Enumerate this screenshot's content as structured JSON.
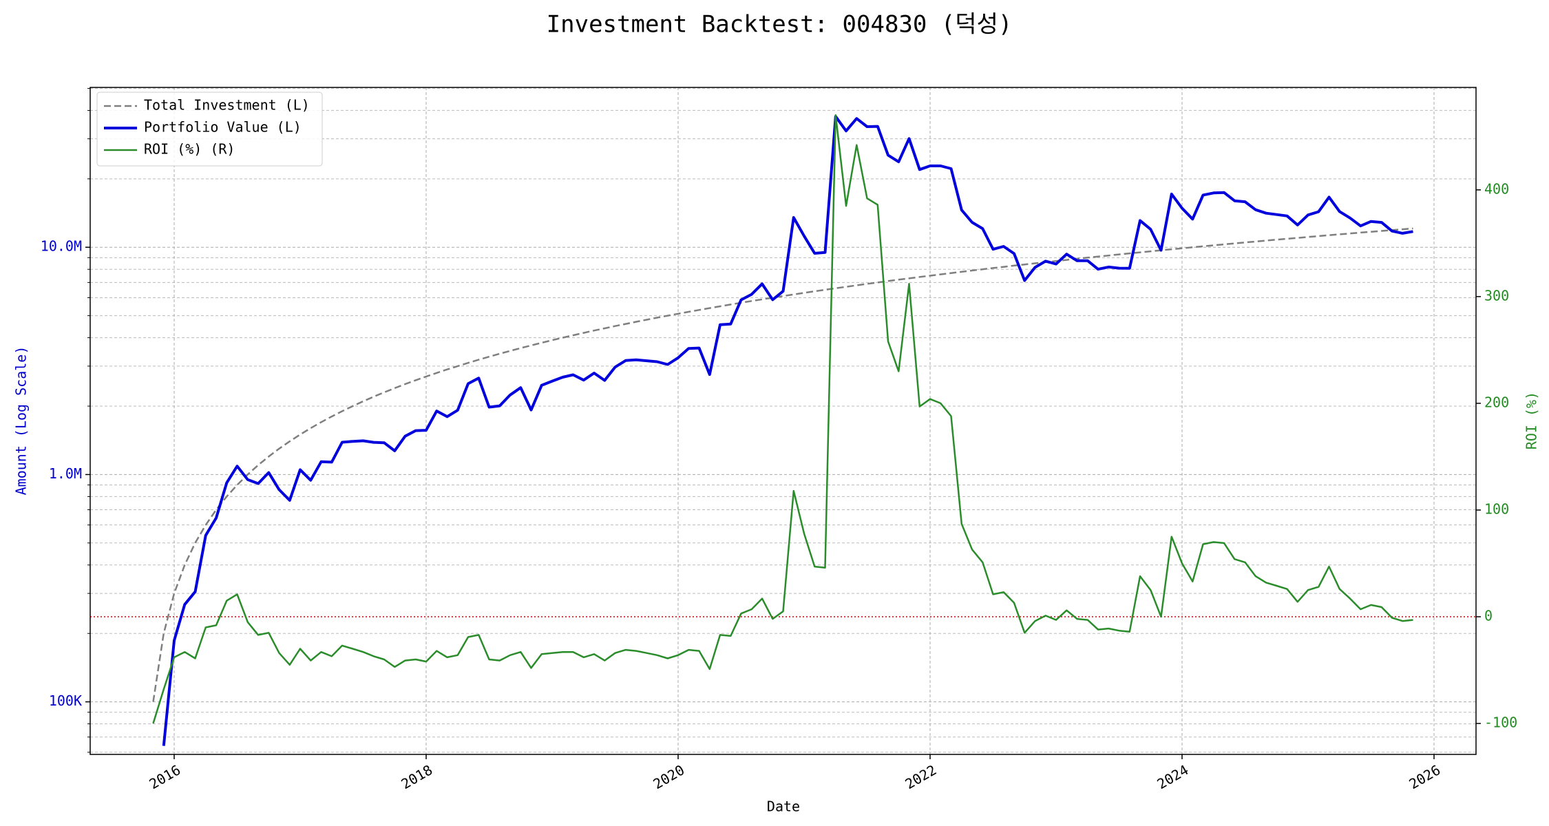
{
  "chart_data": {
    "type": "line",
    "title": "Investment Backtest: 004830 (덕성)",
    "x_label": "Date",
    "y_label": "Amount (Log Scale)",
    "y2_label": "ROI (%)",
    "y_scale": "log",
    "grid": true,
    "legend": "upper-left",
    "x": [
      "2015-11",
      "2015-12",
      "2016-01",
      "2016-02",
      "2016-03",
      "2016-04",
      "2016-05",
      "2016-06",
      "2016-07",
      "2016-08",
      "2016-09",
      "2016-10",
      "2016-11",
      "2016-12",
      "2017-01",
      "2017-02",
      "2017-03",
      "2017-04",
      "2017-05",
      "2017-06",
      "2017-07",
      "2017-08",
      "2017-09",
      "2017-10",
      "2017-11",
      "2017-12",
      "2018-01",
      "2018-02",
      "2018-03",
      "2018-04",
      "2018-05",
      "2018-06",
      "2018-07",
      "2018-08",
      "2018-09",
      "2018-10",
      "2018-11",
      "2018-12",
      "2019-01",
      "2019-02",
      "2019-03",
      "2019-04",
      "2019-05",
      "2019-06",
      "2019-07",
      "2019-08",
      "2019-09",
      "2019-10",
      "2019-11",
      "2019-12",
      "2020-01",
      "2020-02",
      "2020-03",
      "2020-04",
      "2020-05",
      "2020-06",
      "2020-07",
      "2020-08",
      "2020-09",
      "2020-10",
      "2020-11",
      "2020-12",
      "2021-01",
      "2021-02",
      "2021-03",
      "2021-04",
      "2021-05",
      "2021-06",
      "2021-07",
      "2021-08",
      "2021-09",
      "2021-10",
      "2021-11",
      "2021-12",
      "2022-01",
      "2022-02",
      "2022-03",
      "2022-04",
      "2022-05",
      "2022-06",
      "2022-07",
      "2022-08",
      "2022-09",
      "2022-10",
      "2022-11",
      "2022-12",
      "2023-01",
      "2023-02",
      "2023-03",
      "2023-04",
      "2023-05",
      "2023-06",
      "2023-07",
      "2023-08",
      "2023-09",
      "2023-10",
      "2023-11",
      "2023-12",
      "2024-01",
      "2024-02",
      "2024-03",
      "2024-04",
      "2024-05",
      "2024-06",
      "2024-07",
      "2024-08",
      "2024-09",
      "2024-10",
      "2024-11",
      "2024-12",
      "2025-01",
      "2025-02",
      "2025-03",
      "2025-04",
      "2025-05",
      "2025-06",
      "2025-07",
      "2025-08",
      "2025-09",
      "2025-10",
      "2025-11"
    ],
    "xlim": [
      "2015-05",
      "2026-05"
    ],
    "xticks": [
      "2016",
      "2018",
      "2020",
      "2022",
      "2024",
      "2026"
    ],
    "ylim": [
      58700,
      50500000
    ],
    "yticks": [
      {
        "value": 100000,
        "label": "100K"
      },
      {
        "value": 1000000,
        "label": "1.0M"
      },
      {
        "value": 10000000,
        "label": "10.0M"
      }
    ],
    "yminorticks": [
      60000,
      70000,
      80000,
      90000,
      200000,
      300000,
      400000,
      500000,
      600000,
      700000,
      800000,
      900000,
      2000000,
      3000000,
      4000000,
      5000000,
      6000000,
      7000000,
      8000000,
      9000000,
      20000000,
      30000000,
      40000000,
      50000000
    ],
    "y2lim": [
      -129,
      496
    ],
    "y2ticks": [
      -100,
      0,
      100,
      200,
      300,
      400
    ],
    "reference_line": {
      "axis": "y2",
      "value": 0,
      "color": "#cc0000"
    },
    "series": [
      {
        "name": "Total Investment (L)",
        "color": "#7f7f7f",
        "style": "dashed",
        "axis": "y",
        "values": [
          100000,
          200000,
          300000,
          400000,
          500000,
          600000,
          700000,
          800000,
          900000,
          1000000,
          1100000,
          1200000,
          1300000,
          1400000,
          1500000,
          1600000,
          1700000,
          1800000,
          1900000,
          2000000,
          2100000,
          2200000,
          2300000,
          2400000,
          2500000,
          2600000,
          2700000,
          2800000,
          2900000,
          3000000,
          3100000,
          3200000,
          3300000,
          3400000,
          3500000,
          3600000,
          3700000,
          3800000,
          3900000,
          4000000,
          4100000,
          4200000,
          4300000,
          4400000,
          4500000,
          4600000,
          4700000,
          4800000,
          4900000,
          5000000,
          5100000,
          5200000,
          5300000,
          5400000,
          5500000,
          5600000,
          5700000,
          5800000,
          5900000,
          6000000,
          6100000,
          6200000,
          6300000,
          6400000,
          6500000,
          6600000,
          6700000,
          6800000,
          6900000,
          7000000,
          7100000,
          7200000,
          7300000,
          7400000,
          7500000,
          7600000,
          7700000,
          7800000,
          7900000,
          8000000,
          8100000,
          8200000,
          8300000,
          8400000,
          8500000,
          8600000,
          8700000,
          8800000,
          8900000,
          9000000,
          9100000,
          9200000,
          9300000,
          9400000,
          9500000,
          9600000,
          9700000,
          9800000,
          9900000,
          10000000,
          10100000,
          10200000,
          10300000,
          10400000,
          10500000,
          10600000,
          10700000,
          10800000,
          10900000,
          11000000,
          11100000,
          11200000,
          11300000,
          11400000,
          11500000,
          11600000,
          11700000,
          11800000,
          11900000,
          12000000,
          12100000
        ]
      },
      {
        "name": "Portfolio Value (L)",
        "color": "#0000dd",
        "style": "solid",
        "width": 4,
        "axis": "y",
        "values": [
          null,
          64000,
          186000,
          268000,
          305000,
          540000,
          644000,
          920000,
          1089000,
          950000,
          913000,
          1020000,
          858000,
          770000,
          1050000,
          944000,
          1139000,
          1134000,
          1387000,
          1400000,
          1407000,
          1386000,
          1380000,
          1272000,
          1475000,
          1560000,
          1566000,
          1904000,
          1798000,
          1920000,
          2511000,
          2656000,
          1980000,
          2006000,
          2240000,
          2412000,
          1924000,
          2470000,
          2574000,
          2680000,
          2747000,
          2604000,
          2795000,
          2596000,
          2970000,
          3174000,
          3196000,
          3168000,
          3136000,
          3050000,
          3264000,
          3588000,
          3604000,
          2754000,
          4565000,
          4592000,
          5871000,
          6206000,
          6903000,
          5880000,
          6405000,
          13516000,
          11214000,
          9408000,
          9490000,
          37620000,
          32495000,
          36856000,
          33948000,
          34020000,
          25418000,
          23760000,
          30076000,
          21978000,
          22800000,
          22800000,
          22176000,
          14586000,
          12877000,
          12080000,
          9801000,
          10086000,
          9379000,
          7140000,
          8160000,
          8686000,
          8439000,
          9328000,
          8722000,
          8730000,
          8008000,
          8188000,
          8091000,
          8084000,
          13110000,
          12000000,
          9700000,
          17150000,
          14850000,
          13300000,
          16968000,
          17340000,
          17407000,
          16016000,
          15855000,
          14628000,
          14124000,
          13932000,
          13734000,
          12540000,
          13875000,
          14336000,
          16611000,
          14364000,
          13455000,
          12412000,
          12987000,
          12862000,
          11781000,
          11520000,
          11737000
        ]
      },
      {
        "name": "ROI (%) (R)",
        "color": "#2a8c2a",
        "style": "solid",
        "axis": "y2",
        "values": [
          -100,
          -68,
          -38,
          -33,
          -39,
          -10,
          -8,
          15,
          21,
          -5,
          -17,
          -15,
          -34,
          -45,
          -30,
          -41,
          -33,
          -37,
          -27,
          -30,
          -33,
          -37,
          -40,
          -47,
          -41,
          -40,
          -42,
          -32,
          -38,
          -36,
          -19,
          -17,
          -40,
          -41,
          -36,
          -33,
          -48,
          -35,
          -34,
          -33,
          -33,
          -38,
          -35,
          -41,
          -34,
          -31,
          -32,
          -34,
          -36,
          -39,
          -36,
          -31,
          -32,
          -49,
          -17,
          -18,
          3,
          7,
          17,
          -2,
          5,
          118,
          78,
          47,
          46,
          470,
          385,
          442,
          392,
          386,
          258,
          230,
          312,
          197,
          204,
          200,
          188,
          87,
          63,
          51,
          21,
          23,
          13,
          -15,
          -4,
          1,
          -3,
          6,
          -2,
          -3,
          -12,
          -11,
          -13,
          -14,
          38,
          25,
          0,
          75,
          50,
          33,
          68,
          70,
          69,
          54,
          51,
          38,
          32,
          29,
          26,
          14,
          25,
          28,
          47,
          26,
          17,
          7,
          11,
          9,
          -1,
          -4,
          -3
        ]
      }
    ]
  }
}
